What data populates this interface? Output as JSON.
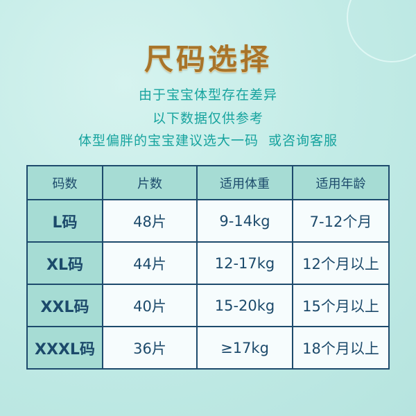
{
  "title": "尺码选择",
  "subtitle_lines": [
    "由于宝宝体型存在差异",
    "以下数据仅供参考",
    "体型偏胖的宝宝建议选大一码  或咨询客服"
  ],
  "table": {
    "headers": [
      "码数",
      "片数",
      "适用体重",
      "适用年龄"
    ],
    "rows": [
      [
        "L码",
        "48片",
        "9-14kg",
        "7-12个月"
      ],
      [
        "XL码",
        "44片",
        "12-17kg",
        "12个月以上"
      ],
      [
        "XXL码",
        "40片",
        "15-20kg",
        "15个月以上"
      ],
      [
        "XXXL码",
        "36片",
        "≥17kg",
        "18个月以上"
      ]
    ]
  },
  "colors": {
    "border": "#1d4a6c",
    "header_bg": "#a6dcd4",
    "text": "#1c4a6b",
    "subtitle": "#16a39e",
    "title": "#a8742a"
  }
}
